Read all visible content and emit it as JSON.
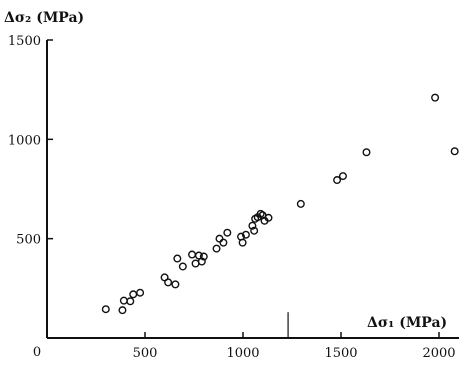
{
  "chart_data": {
    "type": "scatter",
    "title": "",
    "xlabel": "Δσ₁ (MPa)",
    "ylabel": "Δσ₂ (MPa)",
    "xlim": [
      0,
      2100
    ],
    "ylim": [
      0,
      1500
    ],
    "x_ticks": [
      500,
      1000,
      1500,
      2000
    ],
    "y_ticks": [
      500,
      1000,
      1500
    ],
    "x_tick_labels": [
      "500",
      "1000",
      "1500",
      "2000"
    ],
    "y_tick_labels": [
      "500",
      "1000",
      "1500"
    ],
    "origin_label": "0",
    "grid": false,
    "legend": "none",
    "annotations": [
      {
        "type": "vertical-marker",
        "x": 1230,
        "y_range": [
          0,
          130
        ]
      }
    ],
    "points": [
      {
        "x": 300,
        "y": 145
      },
      {
        "x": 385,
        "y": 140
      },
      {
        "x": 392,
        "y": 188
      },
      {
        "x": 425,
        "y": 185
      },
      {
        "x": 440,
        "y": 220
      },
      {
        "x": 475,
        "y": 228
      },
      {
        "x": 600,
        "y": 305
      },
      {
        "x": 618,
        "y": 280
      },
      {
        "x": 655,
        "y": 270
      },
      {
        "x": 665,
        "y": 400
      },
      {
        "x": 693,
        "y": 360
      },
      {
        "x": 740,
        "y": 420
      },
      {
        "x": 758,
        "y": 375
      },
      {
        "x": 775,
        "y": 415
      },
      {
        "x": 790,
        "y": 385
      },
      {
        "x": 800,
        "y": 410
      },
      {
        "x": 865,
        "y": 450
      },
      {
        "x": 880,
        "y": 500
      },
      {
        "x": 900,
        "y": 480
      },
      {
        "x": 920,
        "y": 530
      },
      {
        "x": 990,
        "y": 510
      },
      {
        "x": 998,
        "y": 480
      },
      {
        "x": 1015,
        "y": 520
      },
      {
        "x": 1048,
        "y": 565
      },
      {
        "x": 1057,
        "y": 540
      },
      {
        "x": 1062,
        "y": 600
      },
      {
        "x": 1075,
        "y": 608
      },
      {
        "x": 1090,
        "y": 625
      },
      {
        "x": 1100,
        "y": 618
      },
      {
        "x": 1110,
        "y": 590
      },
      {
        "x": 1130,
        "y": 605
      },
      {
        "x": 1295,
        "y": 675
      },
      {
        "x": 1480,
        "y": 795
      },
      {
        "x": 1510,
        "y": 815
      },
      {
        "x": 1630,
        "y": 935
      },
      {
        "x": 1980,
        "y": 1210
      },
      {
        "x": 2080,
        "y": 940
      }
    ]
  }
}
